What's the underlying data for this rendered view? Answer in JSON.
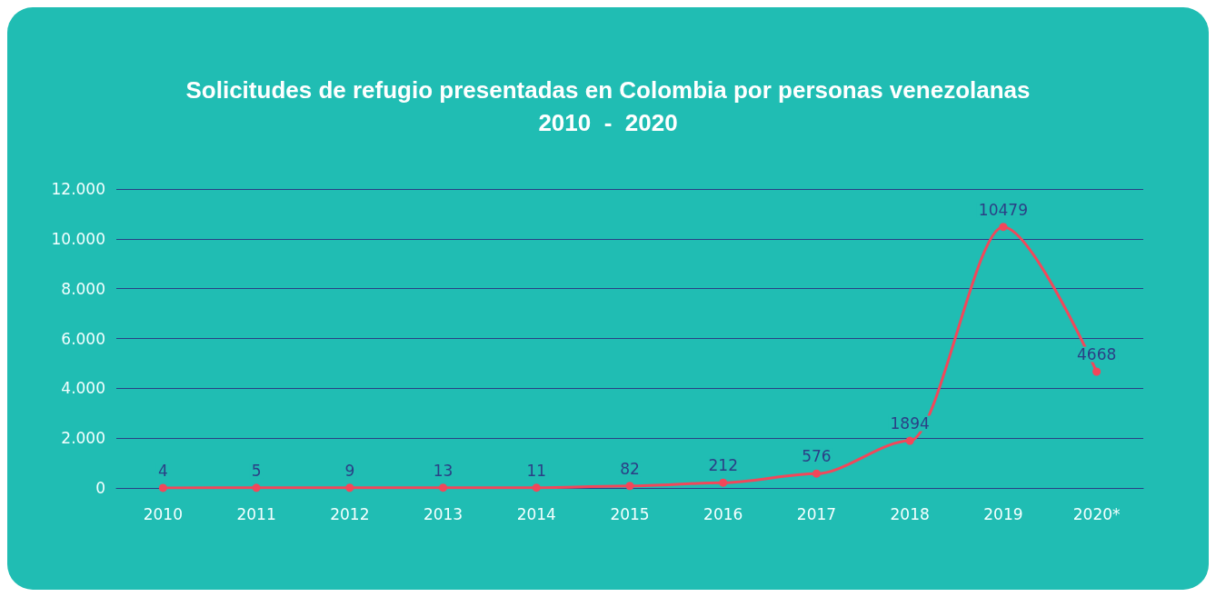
{
  "chart_data": {
    "type": "line",
    "title": "Solicitudes de refugio presentadas en Colombia por personas venezolanas\n2010  -  2020",
    "categories": [
      "2010",
      "2011",
      "2012",
      "2013",
      "2014",
      "2015",
      "2016",
      "2017",
      "2018",
      "2019",
      "2020*"
    ],
    "series": [
      {
        "color": "#f2475a",
        "values": [
          4,
          5,
          9,
          13,
          11,
          82,
          212,
          576,
          1894,
          10479,
          4668
        ]
      }
    ],
    "ylim": [
      0,
      12000
    ],
    "yticks": [
      0,
      {
        "value": 2000,
        "label": "2.000"
      },
      {
        "value": 4000,
        "label": "4.000"
      },
      {
        "value": 6000,
        "label": "6.000"
      },
      {
        "value": 8000,
        "label": "8.000"
      },
      {
        "value": 10000,
        "label": "10.000"
      },
      {
        "value": 12000,
        "label": "12.000"
      }
    ],
    "grid": "y",
    "marker": "circle",
    "line_style": "solid",
    "data_labels": true
  }
}
